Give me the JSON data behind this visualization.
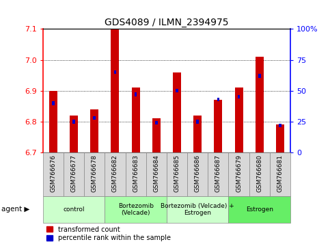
{
  "title": "GDS4089 / ILMN_2394975",
  "samples": [
    "GSM766676",
    "GSM766677",
    "GSM766678",
    "GSM766682",
    "GSM766683",
    "GSM766684",
    "GSM766685",
    "GSM766686",
    "GSM766687",
    "GSM766679",
    "GSM766680",
    "GSM766681"
  ],
  "red_values": [
    6.9,
    6.82,
    6.84,
    7.1,
    6.91,
    6.81,
    6.96,
    6.82,
    6.87,
    6.91,
    7.01,
    6.79
  ],
  "blue_values_pct": [
    40,
    25,
    28,
    65,
    47,
    24,
    50,
    25,
    43,
    45,
    62,
    22
  ],
  "ylim_left": [
    6.7,
    7.1
  ],
  "ylim_right": [
    0,
    100
  ],
  "yticks_left": [
    6.7,
    6.8,
    6.9,
    7.0,
    7.1
  ],
  "yticks_right": [
    0,
    25,
    50,
    75,
    100
  ],
  "ytick_labels_right": [
    "0",
    "25",
    "50",
    "75",
    "100%"
  ],
  "groups": [
    {
      "label": "control",
      "start": 0,
      "end": 3,
      "color": "#ccffcc"
    },
    {
      "label": "Bortezomib\n(Velcade)",
      "start": 3,
      "end": 6,
      "color": "#aaffaa"
    },
    {
      "label": "Bortezomib (Velcade) +\nEstrogen",
      "start": 6,
      "end": 9,
      "color": "#ccffcc"
    },
    {
      "label": "Estrogen",
      "start": 9,
      "end": 12,
      "color": "#66ee66"
    }
  ],
  "bar_width": 0.4,
  "red_color": "#cc0000",
  "blue_color": "#0000cc",
  "baseline": 6.7,
  "blue_bar_width": 0.12,
  "blue_bar_height": 0.012
}
